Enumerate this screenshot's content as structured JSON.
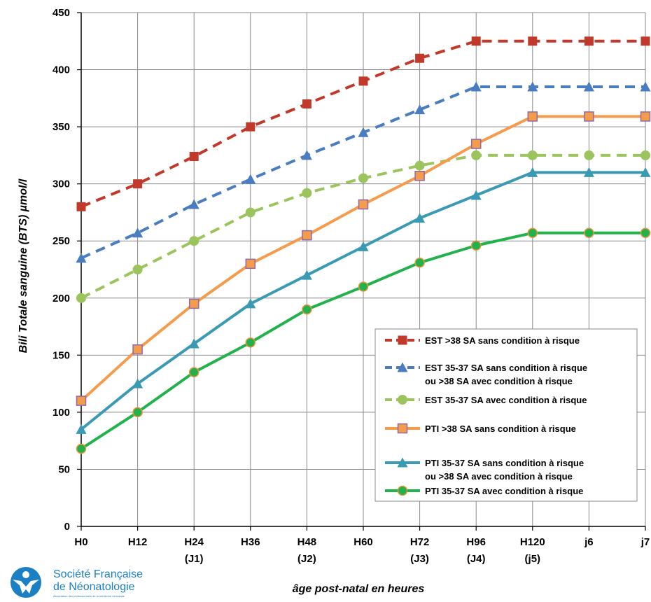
{
  "chart_data": {
    "type": "line",
    "ylabel": "Bili Totale sanguine (BTS) µmol/l",
    "xlabel": "âge post-natal en heures",
    "ylim": [
      0,
      450
    ],
    "yticks": [
      "0",
      "50",
      "100",
      "150",
      "200",
      "250",
      "300",
      "350",
      "400",
      "450"
    ],
    "categories": [
      "H0",
      "H12",
      "H24",
      "H36",
      "H48",
      "H60",
      "H72",
      "H96",
      "H120",
      "j6",
      "j7"
    ],
    "category_sublabels": [
      "",
      "",
      "(J1)",
      "",
      "(J2)",
      "",
      "(J3)",
      "(J4)",
      "(j5)",
      "",
      ""
    ],
    "grid": true,
    "legend_position": "bottom-right",
    "series": [
      {
        "name": "EST >38 SA sans condition à risque",
        "name2": "",
        "color": "#c0392b",
        "dash": true,
        "marker": "square",
        "values": [
          280,
          300,
          324,
          350,
          370,
          390,
          410,
          425,
          425,
          425,
          425
        ]
      },
      {
        "name": "EST  35-37 SA sans condition à risque",
        "name2": "ou >38 SA avec condition à risque",
        "color": "#4a7cc0",
        "dash": true,
        "marker": "triangle",
        "values": [
          235,
          257,
          282,
          304,
          325,
          345,
          365,
          385,
          385,
          385,
          385
        ]
      },
      {
        "name": "EST 35-37 SA avec condition à risque",
        "name2": "",
        "color": "#9bc45c",
        "dash": true,
        "marker": "circle",
        "values": [
          200,
          225,
          250,
          275,
          292,
          305,
          316,
          325,
          325,
          325,
          325
        ]
      },
      {
        "name": "PTI >38 SA sans condition à risque",
        "name2": "",
        "color": "#f59b4c",
        "dash": false,
        "marker": "square-outlined",
        "values": [
          110,
          155,
          195,
          230,
          255,
          282,
          307,
          335,
          359,
          359,
          359
        ]
      },
      {
        "name": "PTI 35-37 SA sans condition à risque",
        "name2": "ou >38 SA avec condition à risque",
        "color": "#3a9ab3",
        "dash": false,
        "marker": "triangle",
        "values": [
          85,
          125,
          160,
          195,
          220,
          245,
          270,
          290,
          310,
          310,
          310
        ]
      },
      {
        "name": "PTI 35-37 SA avec condition à risque",
        "name2": "",
        "color": "#22b24c",
        "dash": false,
        "marker": "circle-outlined",
        "values": [
          68,
          100,
          135,
          161,
          190,
          210,
          231,
          246,
          257,
          257,
          257
        ]
      }
    ]
  },
  "logo": {
    "line1": "Société Française",
    "line2": "de Néonatologie",
    "line3": "Association des professionnels de la médecine néonatale"
  }
}
